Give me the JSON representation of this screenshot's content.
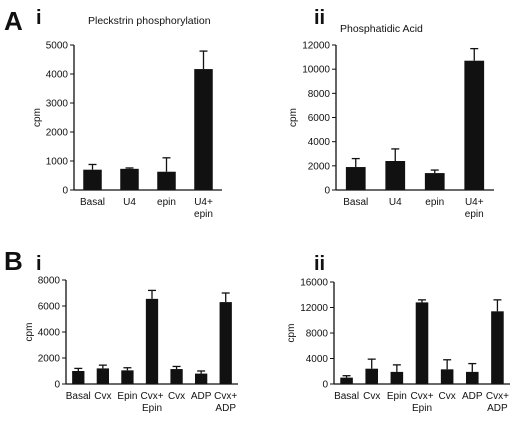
{
  "panels": {
    "A": "A",
    "B": "B"
  },
  "chart_data": [
    {
      "id": "Ai",
      "panel_label": "i",
      "type": "bar",
      "title": "Pleckstrin phosphorylation",
      "ylabel": "cpm",
      "categories": [
        [
          "Basal"
        ],
        [
          "U4"
        ],
        [
          "epin"
        ],
        [
          "U4+",
          "epin"
        ]
      ],
      "values": [
        700,
        730,
        630,
        4170
      ],
      "errors": [
        180,
        30,
        480,
        620
      ],
      "ylim": [
        0,
        5000
      ],
      "yticks": [
        0,
        1000,
        2000,
        3000,
        4000,
        5000
      ]
    },
    {
      "id": "Aii",
      "panel_label": "ii",
      "type": "bar",
      "title": "Phosphatidic Acid",
      "ylabel": "cpm",
      "categories": [
        [
          "Basal"
        ],
        [
          "U4"
        ],
        [
          "epin"
        ],
        [
          "U4+",
          "epin"
        ]
      ],
      "values": [
        1900,
        2400,
        1400,
        10700
      ],
      "errors": [
        700,
        1000,
        250,
        1000
      ],
      "ylim": [
        0,
        12000
      ],
      "yticks": [
        0,
        2000,
        4000,
        6000,
        8000,
        10000,
        12000
      ]
    },
    {
      "id": "Bi",
      "panel_label": "i",
      "type": "bar",
      "title": "",
      "ylabel": "cpm",
      "categories": [
        [
          "Basal"
        ],
        [
          "Cvx"
        ],
        [
          "Epin"
        ],
        [
          "Cvx+",
          "Epin"
        ],
        [
          "Cvx"
        ],
        [
          "ADP"
        ],
        [
          "Cvx+",
          "ADP"
        ]
      ],
      "values": [
        1000,
        1200,
        1050,
        6550,
        1150,
        800,
        6300
      ],
      "errors": [
        200,
        250,
        200,
        650,
        200,
        200,
        700
      ],
      "ylim": [
        0,
        8000
      ],
      "yticks": [
        0,
        2000,
        4000,
        6000,
        8000
      ]
    },
    {
      "id": "Bii",
      "panel_label": "ii",
      "type": "bar",
      "title": "",
      "ylabel": "cpm",
      "categories": [
        [
          "Basal"
        ],
        [
          "Cvx"
        ],
        [
          "Epin"
        ],
        [
          "Cvx+",
          "Epin"
        ],
        [
          "Cvx"
        ],
        [
          "ADP"
        ],
        [
          "Cvx+",
          "ADP"
        ]
      ],
      "values": [
        1000,
        2400,
        1900,
        12800,
        2300,
        1900,
        11400
      ],
      "errors": [
        300,
        1500,
        1100,
        400,
        1500,
        1300,
        1800
      ],
      "ylim": [
        0,
        16000
      ],
      "yticks": [
        0,
        4000,
        8000,
        12000,
        16000
      ]
    }
  ]
}
